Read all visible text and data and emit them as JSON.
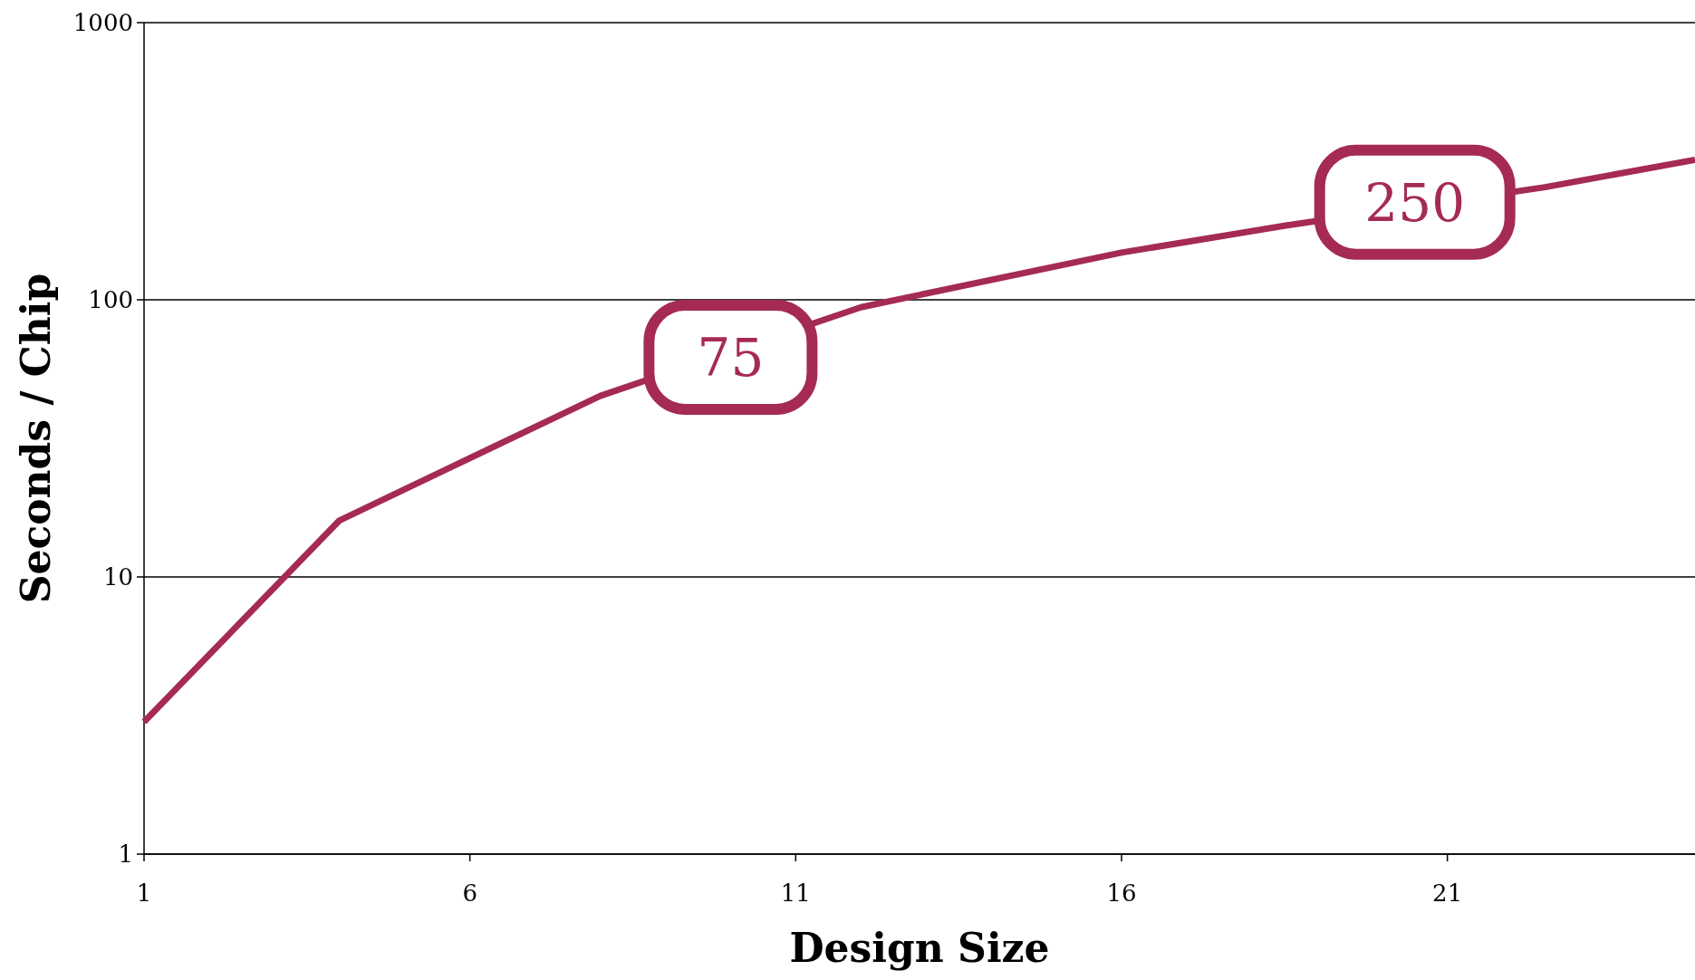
{
  "chart_data": {
    "type": "line",
    "xlabel": "Design Size",
    "ylabel": "Seconds / Chip",
    "x": [
      1,
      4,
      8,
      12,
      16,
      18.5,
      22.5,
      24.8
    ],
    "series": [
      {
        "color": "#a52a55",
        "values": [
          3,
          16,
          45,
          94,
          148,
          185,
          255,
          320
        ]
      }
    ],
    "log": "y",
    "xlim": [
      1,
      24.8
    ],
    "xticks": [
      1,
      6,
      11,
      16,
      21
    ],
    "ylim": [
      1,
      1000
    ],
    "yticks": [
      1,
      10,
      100,
      1000
    ],
    "grid": "y",
    "marker": "none",
    "line_style": "solid",
    "annotations": [
      {
        "text": "75",
        "x": 10,
        "y": 62
      },
      {
        "text": "250",
        "x": 20.5,
        "y": 225
      }
    ]
  }
}
